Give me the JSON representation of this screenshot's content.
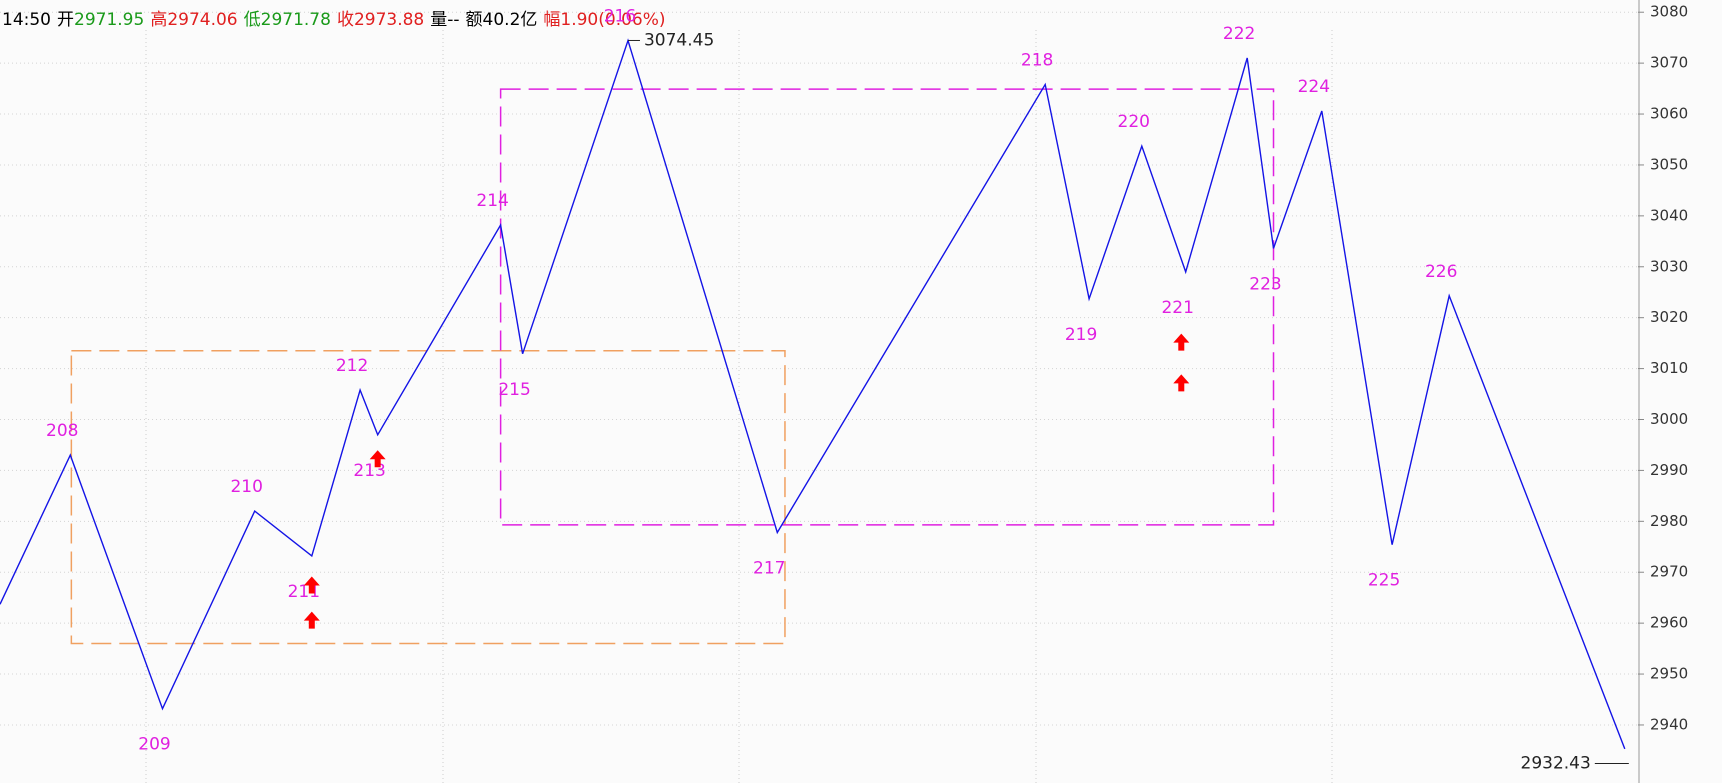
{
  "chart_data": {
    "type": "zigzag",
    "header": [
      {
        "label": "14:50",
        "value": "",
        "label_color": "#000000",
        "value_color": "#000000"
      },
      {
        "label": "开",
        "value": "2971.95",
        "label_color": "#000000",
        "value_color": "#1a9a1a"
      },
      {
        "label": "高",
        "value": "2974.06",
        "label_color": "#e02020",
        "value_color": "#e02020"
      },
      {
        "label": "低",
        "value": "2971.78",
        "label_color": "#1a9a1a",
        "value_color": "#1a9a1a"
      },
      {
        "label": "收",
        "value": "2973.88",
        "label_color": "#e02020",
        "value_color": "#e02020"
      },
      {
        "label": "量",
        "value": "--",
        "label_color": "#000000",
        "value_color": "#000000"
      },
      {
        "label": "额",
        "value": "40.2亿",
        "label_color": "#000000",
        "value_color": "#000000"
      },
      {
        "label": "幅",
        "value": "1.90(0.06%)",
        "label_color": "#e02020",
        "value_color": "#e02020"
      }
    ],
    "x": [
      0,
      16,
      37,
      58,
      71,
      82,
      86,
      114,
      119,
      143,
      177,
      238,
      248,
      260,
      270,
      284,
      290,
      301,
      317,
      330,
      370
    ],
    "series": [
      {
        "name": "zigzag",
        "color": "#1414e6",
        "values": [
          2963.7,
          2993,
          2943.2,
          2982,
          2973.2,
          3005.8,
          2997,
          3038.2,
          3012.9,
          3074.45,
          2977.8,
          3065.8,
          3023.7,
          3053.7,
          3029,
          3071,
          3033.6,
          3060.6,
          2975.4,
          3024.3,
          2935.3
        ],
        "labels": [
          null,
          "208",
          "209",
          "210",
          "211",
          "212",
          "213",
          "214",
          "215",
          "216",
          "217",
          "218",
          "219",
          "220",
          "221",
          "222",
          "223",
          "224",
          "225",
          "226",
          null
        ],
        "label_color": "#e020e0"
      }
    ],
    "boxes": [
      {
        "x": [
          16.25,
          178.75
        ],
        "y": [
          2956,
          3013.5
        ],
        "color": "#f0a060"
      },
      {
        "x": [
          114,
          290
        ],
        "y": [
          2979.3,
          3064.9
        ],
        "color": "#e020e0"
      }
    ],
    "signals": {
      "color": "#ff0000",
      "x": [
        71,
        71,
        86,
        269,
        269
      ],
      "y": [
        2967.4,
        2960.5,
        2992.2,
        3015.1,
        3007.1
      ]
    },
    "annotations": [
      {
        "text": "3074.45",
        "x": 143,
        "y": 3074.45
      },
      {
        "text": "2932.43",
        "x": 370,
        "y": 2932.43
      }
    ],
    "xlim": [
      0,
      373
    ],
    "ylim": [
      2928.6,
      3082.4
    ],
    "yticks": [
      2940,
      2950,
      2960,
      2970,
      2980,
      2990,
      3000,
      3010,
      3020,
      3030,
      3040,
      3050,
      3060,
      3070,
      3080
    ],
    "grid": true
  }
}
